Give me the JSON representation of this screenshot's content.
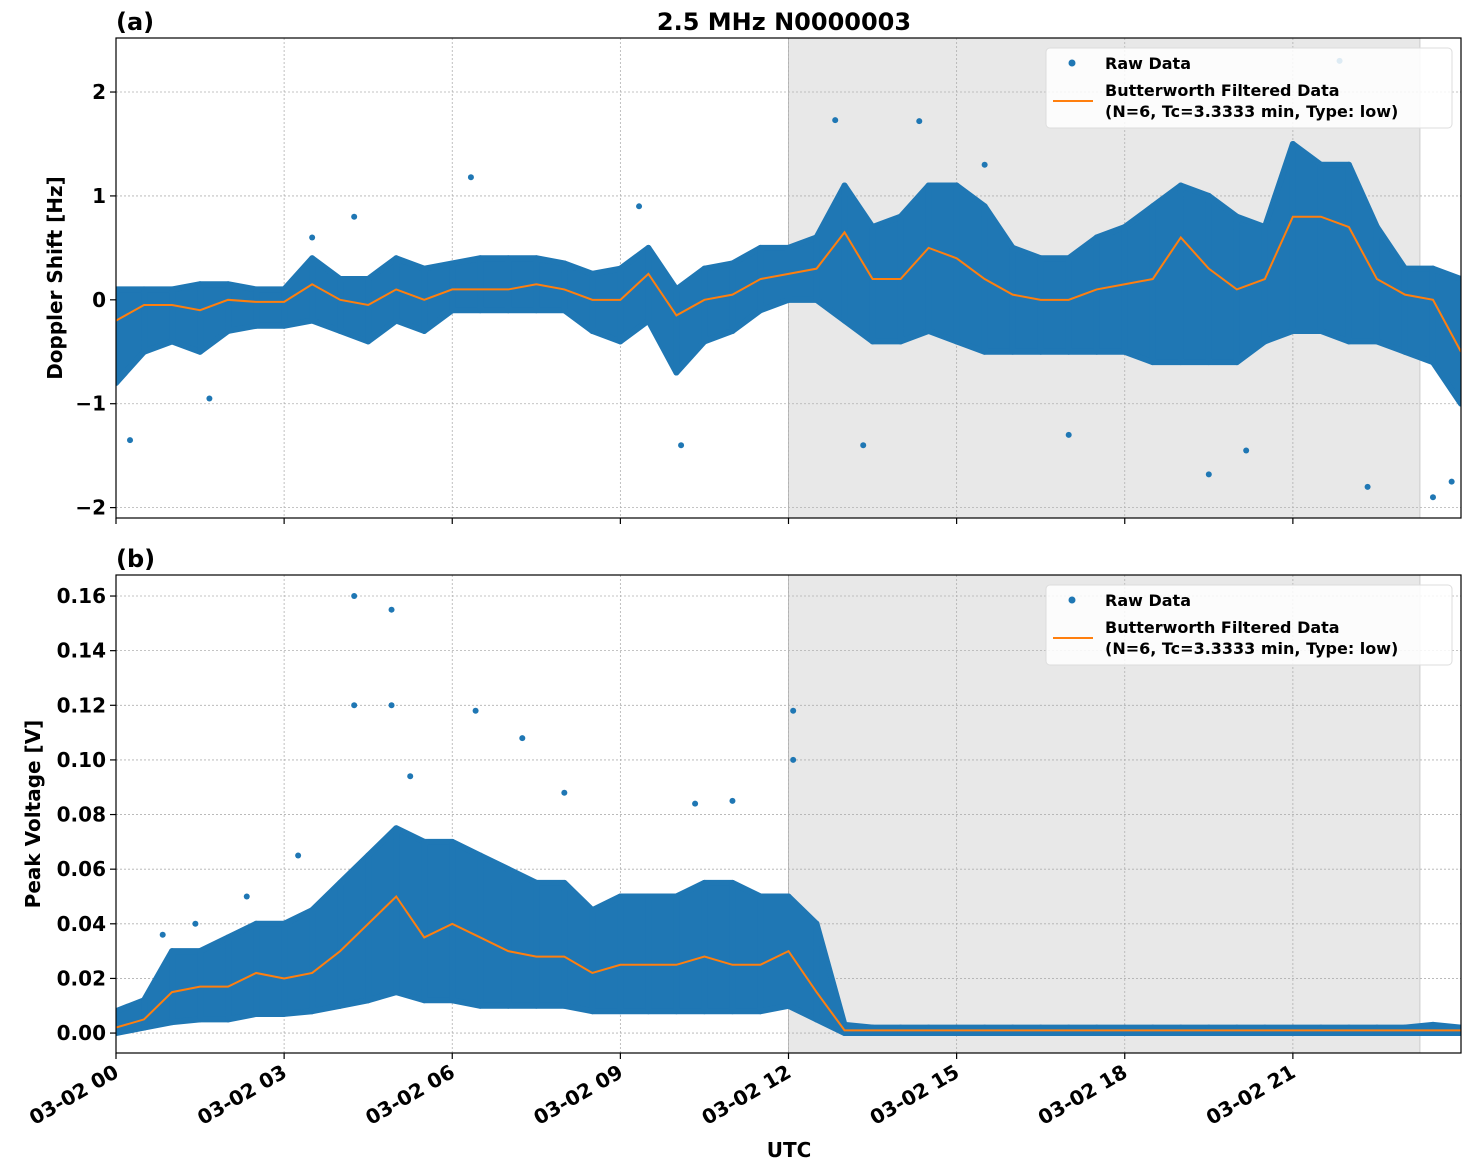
{
  "title": "2.5 MHz N0000003",
  "xlabel": "UTC",
  "x_tick_labels": [
    "03-02 00",
    "03-02 03",
    "03-02 06",
    "03-02 09",
    "03-02 12",
    "03-02 15",
    "03-02 18",
    "03-02 21"
  ],
  "x_ticks": [
    "00:00",
    "03:00",
    "06:00",
    "09:00",
    "12:00",
    "15:00",
    "18:00",
    "21:00"
  ],
  "xlim": [
    "00:00",
    "24:00"
  ],
  "shaded_span": [
    "12:00",
    "23:16"
  ],
  "colors": {
    "raw": "#1f77b4",
    "filtered": "#ff7f0e",
    "shade": "#e8e8e8"
  },
  "legend": {
    "placement": "top-right",
    "raw_label": "Raw Data",
    "filtered_label_1": "Butterworth Filtered Data",
    "filtered_label_2": "(N=6, Tc=3.3333 min, Type: low)"
  },
  "chart_data": [
    {
      "type": "scatter",
      "panel_label": "(a)",
      "ylabel": "Doppler Shift [Hz]",
      "ylim": [
        -2.1,
        2.52
      ],
      "y_ticks": [
        -2,
        -1,
        0,
        1,
        2
      ],
      "y_tick_labels": [
        "−2",
        "−1",
        "0",
        "1",
        "2"
      ],
      "grid": true,
      "x": [
        "00:00",
        "00:30",
        "01:00",
        "01:30",
        "02:00",
        "02:30",
        "03:00",
        "03:30",
        "04:00",
        "04:30",
        "05:00",
        "05:30",
        "06:00",
        "06:30",
        "07:00",
        "07:30",
        "08:00",
        "08:30",
        "09:00",
        "09:30",
        "10:00",
        "10:30",
        "11:00",
        "11:30",
        "12:00",
        "12:30",
        "13:00",
        "13:30",
        "14:00",
        "14:30",
        "15:00",
        "15:30",
        "16:00",
        "16:30",
        "17:00",
        "17:30",
        "18:00",
        "18:30",
        "19:00",
        "19:30",
        "20:00",
        "20:30",
        "21:00",
        "21:30",
        "22:00",
        "22:30",
        "23:00",
        "23:30",
        "24:00"
      ],
      "series": [
        {
          "name": "Butterworth Filtered Data",
          "values": [
            -0.2,
            -0.05,
            -0.05,
            -0.1,
            0.0,
            -0.02,
            -0.02,
            0.15,
            0.0,
            -0.05,
            0.1,
            0.0,
            0.1,
            0.1,
            0.1,
            0.15,
            0.1,
            0.0,
            0.0,
            0.25,
            -0.15,
            0.0,
            0.05,
            0.2,
            0.25,
            0.3,
            0.65,
            0.2,
            0.2,
            0.5,
            0.4,
            0.2,
            0.05,
            0.0,
            0.0,
            0.1,
            0.15,
            0.2,
            0.6,
            0.3,
            0.1,
            0.2,
            0.8,
            0.8,
            0.7,
            0.2,
            0.05,
            0.0,
            -0.5
          ]
        },
        {
          "name": "Raw Data",
          "low": [
            -0.8,
            -0.5,
            -0.4,
            -0.5,
            -0.3,
            -0.25,
            -0.25,
            -0.2,
            -0.3,
            -0.4,
            -0.2,
            -0.3,
            -0.1,
            -0.1,
            -0.1,
            -0.1,
            -0.1,
            -0.3,
            -0.4,
            -0.2,
            -0.7,
            -0.4,
            -0.3,
            -0.1,
            0.0,
            0.0,
            -0.2,
            -0.4,
            -0.4,
            -0.3,
            -0.4,
            -0.5,
            -0.5,
            -0.5,
            -0.5,
            -0.5,
            -0.5,
            -0.6,
            -0.6,
            -0.6,
            -0.6,
            -0.4,
            -0.3,
            -0.3,
            -0.4,
            -0.4,
            -0.5,
            -0.6,
            -1.0
          ],
          "high": [
            0.1,
            0.1,
            0.1,
            0.15,
            0.15,
            0.1,
            0.1,
            0.4,
            0.2,
            0.2,
            0.4,
            0.3,
            0.35,
            0.4,
            0.4,
            0.4,
            0.35,
            0.25,
            0.3,
            0.5,
            0.1,
            0.3,
            0.35,
            0.5,
            0.5,
            0.6,
            1.1,
            0.7,
            0.8,
            1.1,
            1.1,
            0.9,
            0.5,
            0.4,
            0.4,
            0.6,
            0.7,
            0.9,
            1.1,
            1.0,
            0.8,
            0.7,
            1.5,
            1.3,
            1.3,
            0.7,
            0.3,
            0.3,
            0.2
          ],
          "outliers": [
            [
              "00:15",
              -1.35
            ],
            [
              "01:40",
              -0.95
            ],
            [
              "03:30",
              0.6
            ],
            [
              "04:15",
              0.8
            ],
            [
              "06:20",
              1.18
            ],
            [
              "09:20",
              0.9
            ],
            [
              "10:05",
              -1.4
            ],
            [
              "12:50",
              1.73
            ],
            [
              "14:20",
              1.72
            ],
            [
              "13:20",
              -1.4
            ],
            [
              "15:30",
              1.3
            ],
            [
              "17:00",
              -1.3
            ],
            [
              "19:30",
              -1.68
            ],
            [
              "20:10",
              -1.45
            ],
            [
              "21:50",
              2.3
            ],
            [
              "22:20",
              -1.8
            ],
            [
              "23:30",
              -1.9
            ],
            [
              "23:50",
              -1.75
            ]
          ]
        }
      ]
    },
    {
      "type": "scatter",
      "panel_label": "(b)",
      "ylabel": "Peak Voltage [V]",
      "ylim": [
        -0.0073,
        0.1677
      ],
      "y_ticks": [
        0,
        0.02,
        0.04,
        0.06,
        0.08,
        0.1,
        0.12,
        0.14,
        0.16
      ],
      "y_tick_labels": [
        "0.00",
        "0.02",
        "0.04",
        "0.06",
        "0.08",
        "0.10",
        "0.12",
        "0.14",
        "0.16"
      ],
      "grid": true,
      "x": [
        "00:00",
        "00:30",
        "01:00",
        "01:30",
        "02:00",
        "02:30",
        "03:00",
        "03:30",
        "04:00",
        "04:30",
        "05:00",
        "05:30",
        "06:00",
        "06:30",
        "07:00",
        "07:30",
        "08:00",
        "08:30",
        "09:00",
        "09:30",
        "10:00",
        "10:30",
        "11:00",
        "11:30",
        "12:00",
        "12:30",
        "13:00",
        "13:30",
        "14:00",
        "14:30",
        "15:00",
        "15:30",
        "16:00",
        "16:30",
        "17:00",
        "17:30",
        "18:00",
        "18:30",
        "19:00",
        "19:30",
        "20:00",
        "20:30",
        "21:00",
        "21:30",
        "22:00",
        "22:30",
        "23:00",
        "23:30",
        "24:00"
      ],
      "series": [
        {
          "name": "Butterworth Filtered Data",
          "values": [
            0.002,
            0.005,
            0.015,
            0.017,
            0.017,
            0.022,
            0.02,
            0.022,
            0.03,
            0.04,
            0.05,
            0.035,
            0.04,
            0.035,
            0.03,
            0.028,
            0.028,
            0.022,
            0.025,
            0.025,
            0.025,
            0.028,
            0.025,
            0.025,
            0.03,
            0.015,
            0.001,
            0.001,
            0.001,
            0.001,
            0.001,
            0.001,
            0.001,
            0.001,
            0.001,
            0.001,
            0.001,
            0.001,
            0.001,
            0.001,
            0.001,
            0.001,
            0.001,
            0.001,
            0.001,
            0.001,
            0.001,
            0.001,
            0.001
          ]
        },
        {
          "name": "Raw Data",
          "low": [
            0,
            0.002,
            0.004,
            0.005,
            0.005,
            0.007,
            0.007,
            0.008,
            0.01,
            0.012,
            0.015,
            0.012,
            0.012,
            0.01,
            0.01,
            0.01,
            0.01,
            0.008,
            0.008,
            0.008,
            0.008,
            0.008,
            0.008,
            0.008,
            0.01,
            0.005,
            0,
            0,
            0,
            0,
            0,
            0,
            0,
            0,
            0,
            0,
            0,
            0,
            0,
            0,
            0,
            0,
            0,
            0,
            0,
            0,
            0,
            0,
            0
          ],
          "high": [
            0.008,
            0.012,
            0.03,
            0.03,
            0.035,
            0.04,
            0.04,
            0.045,
            0.055,
            0.065,
            0.075,
            0.07,
            0.07,
            0.065,
            0.06,
            0.055,
            0.055,
            0.045,
            0.05,
            0.05,
            0.05,
            0.055,
            0.055,
            0.05,
            0.05,
            0.04,
            0.003,
            0.002,
            0.002,
            0.002,
            0.002,
            0.002,
            0.002,
            0.002,
            0.002,
            0.002,
            0.002,
            0.002,
            0.002,
            0.002,
            0.002,
            0.002,
            0.002,
            0.002,
            0.002,
            0.002,
            0.002,
            0.003,
            0.002
          ],
          "outliers": [
            [
              "00:50",
              0.036
            ],
            [
              "01:25",
              0.04
            ],
            [
              "02:20",
              0.05
            ],
            [
              "03:15",
              0.065
            ],
            [
              "04:15",
              0.16
            ],
            [
              "04:15",
              0.12
            ],
            [
              "04:55",
              0.155
            ],
            [
              "04:55",
              0.12
            ],
            [
              "05:15",
              0.094
            ],
            [
              "06:25",
              0.118
            ],
            [
              "07:15",
              0.108
            ],
            [
              "08:00",
              0.088
            ],
            [
              "10:20",
              0.084
            ],
            [
              "11:00",
              0.085
            ],
            [
              "12:05",
              0.118
            ],
            [
              "12:05",
              0.1
            ]
          ]
        }
      ]
    }
  ]
}
